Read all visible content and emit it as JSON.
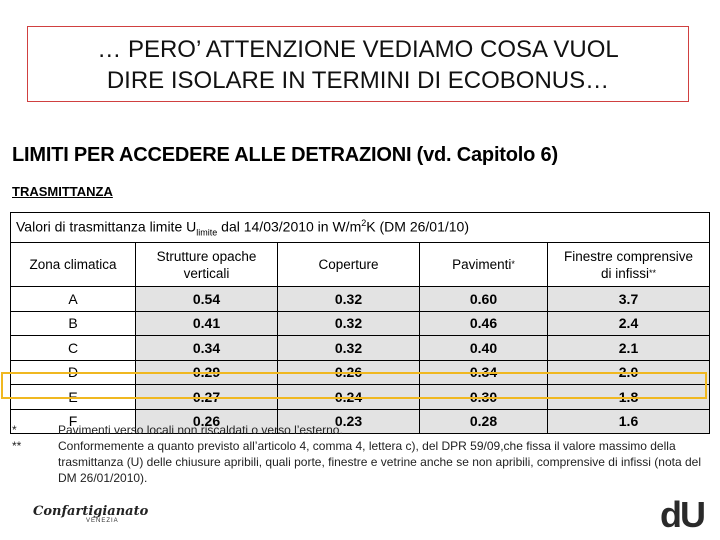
{
  "slide": {
    "title_line1": "… PERO’ ATTENZIONE VEDIAMO COSA VUOL",
    "title_line2": "DIRE ISOLARE IN TERMINI DI ECOBONUS…"
  },
  "document": {
    "heading": "LIMITI PER ACCEDERE ALLE DETRAZIONI (vd. Capitolo 6)",
    "subheading": "TRASMITTANZA",
    "table": {
      "caption_pre": "Valori di trasmittanza limite U",
      "caption_sub": "limite",
      "caption_mid": " dal 14/03/2010 in W/m",
      "caption_sup": "2",
      "caption_post": "K (DM 26/01/10)",
      "headers": {
        "zone": "Zona climatica",
        "walls_l1": "Strutture opache",
        "walls_l2": "verticali",
        "roofs": "Coperture",
        "floors": "Pavimenti",
        "floors_mark": "*",
        "windows_l1": "Finestre comprensive",
        "windows_l2": "di infissi",
        "windows_mark": "**"
      },
      "rows": [
        {
          "zone": "A",
          "walls": "0.54",
          "roofs": "0.32",
          "floors": "0.60",
          "windows": "3.7"
        },
        {
          "zone": "B",
          "walls": "0.41",
          "roofs": "0.32",
          "floors": "0.46",
          "windows": "2.4"
        },
        {
          "zone": "C",
          "walls": "0.34",
          "roofs": "0.32",
          "floors": "0.40",
          "windows": "2.1"
        },
        {
          "zone": "D",
          "walls": "0.29",
          "roofs": "0.26",
          "floors": "0.34",
          "windows": "2.0"
        },
        {
          "zone": "E",
          "walls": "0.27",
          "roofs": "0.24",
          "floors": "0.30",
          "windows": "1.8"
        },
        {
          "zone": "F",
          "walls": "0.26",
          "roofs": "0.23",
          "floors": "0.28",
          "windows": "1.6"
        }
      ],
      "highlighted_zone": "E"
    },
    "notes": [
      {
        "symbol": "*",
        "text": "Pavimenti verso locali non riscaldati o verso l’esterno."
      },
      {
        "symbol": "**",
        "text": "Conformemente a quanto previsto all’articolo 4, comma 4, lettera c), del DPR 59/09,che fissa il valore massimo della trasmittanza (U) delle chiusure apribili, quali porte, finestre e vetrine anche se non apribili, comprensive di infissi (nota del DM 26/01/2010)."
      }
    ]
  },
  "logos": {
    "left": "Confartigianato",
    "left_sub": "VENEZIA",
    "right": "dU"
  },
  "colors": {
    "title_border": "#d04040",
    "highlight": "#f0b820",
    "shaded_cell": "#e3e3e3"
  }
}
